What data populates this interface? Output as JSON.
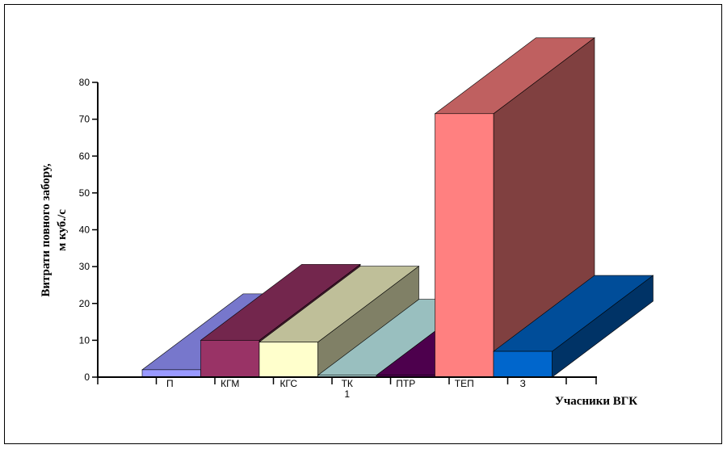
{
  "chart_data": {
    "type": "bar",
    "title": "",
    "ylabel_line1": "Витрати повного забору,",
    "ylabel_line2": "м куб./с",
    "xlabel": "Учасники ВГК",
    "ylim": [
      0,
      80
    ],
    "yticks": [
      "0",
      "10",
      "20",
      "30",
      "40",
      "50",
      "60",
      "70",
      "80"
    ],
    "categories": [
      "П",
      "КГМ",
      "КГС",
      "ТК 1",
      "ПТР",
      "ТЕП",
      "З"
    ],
    "category_label_lines": [
      [
        "П"
      ],
      [
        "КГМ"
      ],
      [
        "КГС"
      ],
      [
        "ТК",
        "1"
      ],
      [
        "ПТР"
      ],
      [
        "ТЕП"
      ],
      [
        "З"
      ]
    ],
    "values": [
      2,
      10,
      9.5,
      0.5,
      0.5,
      71.5,
      7
    ],
    "colors": {
      "front": [
        "#9999ff",
        "#993366",
        "#ffffcc",
        "#ccffff",
        "#660066",
        "#ff8080",
        "#0066cc"
      ],
      "top": [
        "#7777cc",
        "#73264d",
        "#bfbf99",
        "#99bfbf",
        "#4d004d",
        "#bf6060",
        "#004d99"
      ],
      "side": [
        "#5b5b99",
        "#4d1a33",
        "#808066",
        "#668080",
        "#330033",
        "#804040",
        "#003366"
      ]
    },
    "grid": false,
    "legend": "none"
  }
}
